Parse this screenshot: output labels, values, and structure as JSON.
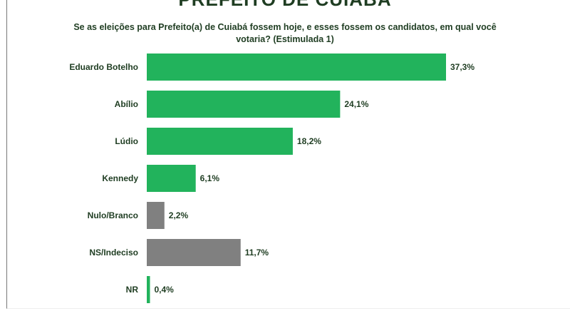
{
  "chart_data": {
    "type": "bar",
    "orientation": "horizontal",
    "title": "PREFEITO DE CUIABÁ",
    "subtitle": "Se as eleições para Prefeito(a) de Cuiabá fossem hoje, e esses fossem os candidatos, em qual você votaria? (Estimulada 1)",
    "categories": [
      "Eduardo Botelho",
      "Abílio",
      "Lúdio",
      "Kennedy",
      "Nulo/Branco",
      "NS/Indeciso",
      "NR"
    ],
    "values": [
      37.3,
      24.1,
      18.2,
      6.1,
      2.2,
      11.7,
      0.4
    ],
    "data_labels": [
      "37,3%",
      "24,1%",
      "18,2%",
      "6,1%",
      "2,2%",
      "11,7%",
      "0,4%"
    ],
    "colors": [
      "#22b35c",
      "#22b35c",
      "#22b35c",
      "#22b35c",
      "#808080",
      "#808080",
      "#22b35c"
    ],
    "unit": "%",
    "grid": false,
    "legend": "none"
  }
}
